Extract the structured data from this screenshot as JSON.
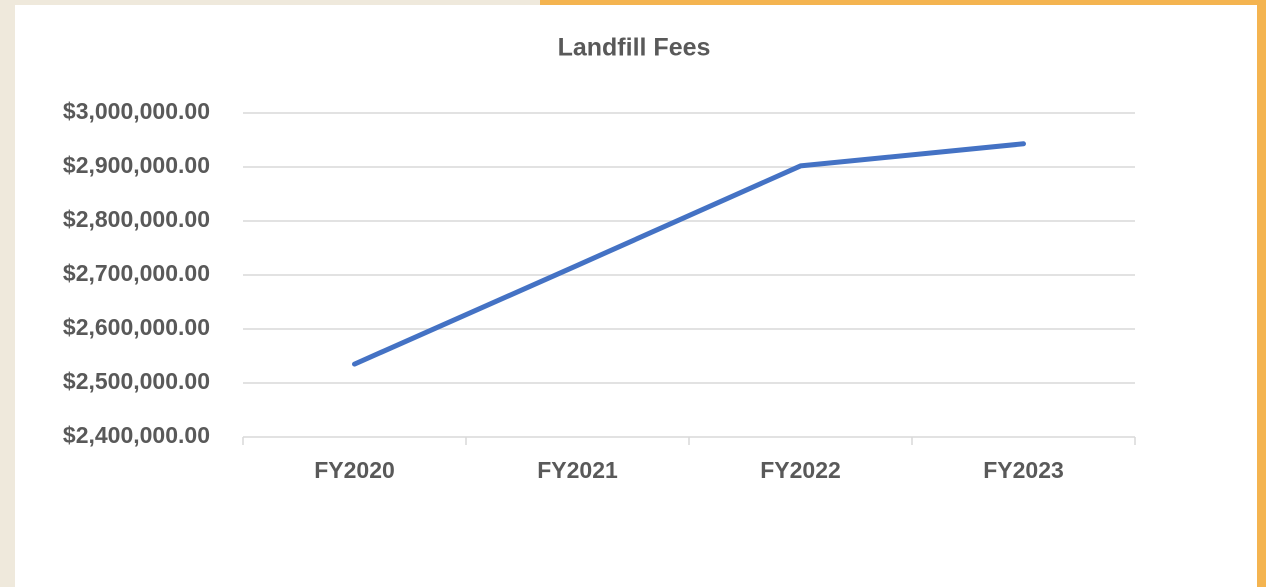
{
  "chart_data": {
    "type": "line",
    "title": "Landfill Fees",
    "categories": [
      "FY2020",
      "FY2021",
      "FY2022",
      "FY2023"
    ],
    "series": [
      {
        "name": "Landfill Fees",
        "color": "#4472c4",
        "values": [
          2535000,
          2718000,
          2902000,
          2943000
        ]
      }
    ],
    "ylim": [
      2400000,
      3000000
    ],
    "yticks": [
      {
        "value": 2400000,
        "label": "$2,400,000.00"
      },
      {
        "value": 2500000,
        "label": "$2,500,000.00"
      },
      {
        "value": 2600000,
        "label": "$2,600,000.00"
      },
      {
        "value": 2700000,
        "label": "$2,700,000.00"
      },
      {
        "value": 2800000,
        "label": "$2,800,000.00"
      },
      {
        "value": 2900000,
        "label": "$2,900,000.00"
      },
      {
        "value": 3000000,
        "label": "$3,000,000.00"
      }
    ],
    "grid": true
  }
}
